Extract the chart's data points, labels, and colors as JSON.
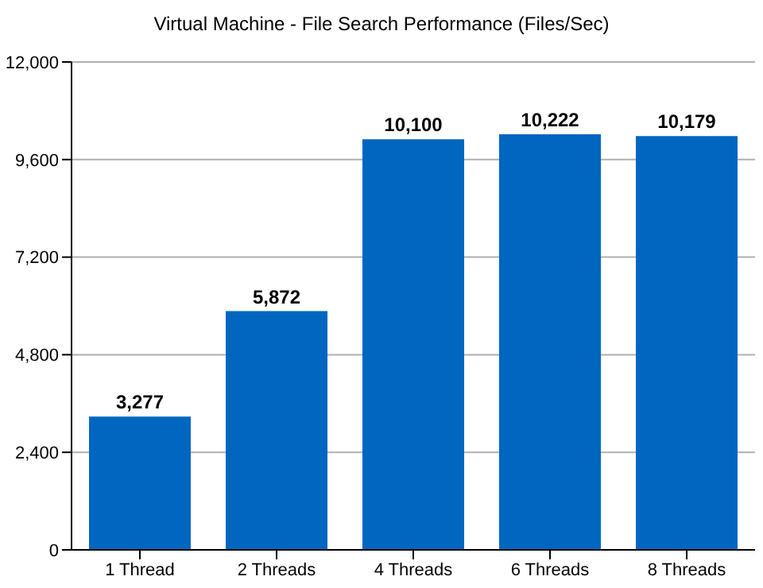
{
  "chart_data": {
    "type": "bar",
    "title": "Virtual Machine - File Search Performance (Files/Sec)",
    "categories": [
      "1 Thread",
      "2 Threads",
      "4 Threads",
      "6 Threads",
      "8 Threads"
    ],
    "values": [
      3277,
      5872,
      10100,
      10222,
      10179
    ],
    "color": "#0066c0",
    "value_labels": [
      "3,277",
      "5,872",
      "10,100",
      "10,222",
      "10,179"
    ],
    "ylim": [
      0,
      12000
    ],
    "yticks": [
      0,
      {
        "value": 2400,
        "label": "2,400"
      },
      {
        "value": 4800,
        "label": "4,800"
      },
      {
        "value": 7200,
        "label": "7,200"
      },
      {
        "value": 9600,
        "label": "9,600"
      },
      {
        "value": 12000,
        "label": "12,000"
      }
    ],
    "grid": "y"
  }
}
